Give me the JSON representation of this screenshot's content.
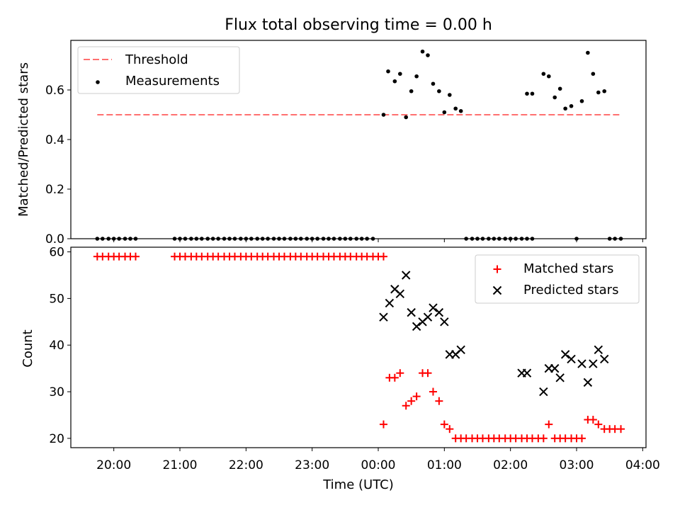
{
  "title": "Flux total observing time = 0.00 h",
  "colors": {
    "threshold": "#ff7070",
    "measurement": "#000000",
    "matched": "#ff0000",
    "predicted": "#000000"
  },
  "chart_data": [
    {
      "type": "scatter",
      "ylabel": "Matched/Predicted stars",
      "xlabel": "",
      "x_unit": "hours since 20:00 UTC",
      "xlim": [
        -0.65,
        8.05
      ],
      "ylim": [
        0,
        0.8
      ],
      "yticks": [
        0.0,
        0.2,
        0.4,
        0.6
      ],
      "ytick_labels": [
        "0.0",
        "0.2",
        "0.4",
        "0.6"
      ],
      "legend": {
        "position": "top-left",
        "entries": [
          "Threshold",
          "Measurements"
        ]
      },
      "threshold": {
        "name": "Threshold",
        "y": 0.5,
        "x_range": [
          -0.25,
          7.65
        ],
        "style": "dashed"
      },
      "series": [
        {
          "name": "Measurements",
          "points": [
            [
              -0.25,
              0
            ],
            [
              -0.17,
              0
            ],
            [
              -0.08,
              0
            ],
            [
              0.0,
              0
            ],
            [
              0.08,
              0
            ],
            [
              0.17,
              0
            ],
            [
              0.25,
              0
            ],
            [
              0.33,
              0
            ],
            [
              0.92,
              0
            ],
            [
              1.0,
              0
            ],
            [
              1.08,
              0
            ],
            [
              1.17,
              0
            ],
            [
              1.25,
              0
            ],
            [
              1.33,
              0
            ],
            [
              1.42,
              0
            ],
            [
              1.5,
              0
            ],
            [
              1.58,
              0
            ],
            [
              1.67,
              0
            ],
            [
              1.75,
              0
            ],
            [
              1.83,
              0
            ],
            [
              1.92,
              0
            ],
            [
              2.0,
              0
            ],
            [
              2.08,
              0
            ],
            [
              2.17,
              0
            ],
            [
              2.25,
              0
            ],
            [
              2.33,
              0
            ],
            [
              2.42,
              0
            ],
            [
              2.5,
              0
            ],
            [
              2.58,
              0
            ],
            [
              2.67,
              0
            ],
            [
              2.75,
              0
            ],
            [
              2.83,
              0
            ],
            [
              2.92,
              0
            ],
            [
              3.0,
              0
            ],
            [
              3.08,
              0
            ],
            [
              3.17,
              0
            ],
            [
              3.25,
              0
            ],
            [
              3.33,
              0
            ],
            [
              3.42,
              0
            ],
            [
              3.5,
              0
            ],
            [
              3.58,
              0
            ],
            [
              3.67,
              0
            ],
            [
              3.75,
              0
            ],
            [
              3.83,
              0
            ],
            [
              3.92,
              0
            ],
            [
              4.08,
              0.5
            ],
            [
              4.15,
              0.675
            ],
            [
              4.25,
              0.635
            ],
            [
              4.33,
              0.665
            ],
            [
              4.42,
              0.49
            ],
            [
              4.5,
              0.595
            ],
            [
              4.58,
              0.655
            ],
            [
              4.67,
              0.755
            ],
            [
              4.75,
              0.74
            ],
            [
              4.83,
              0.625
            ],
            [
              4.92,
              0.595
            ],
            [
              5.0,
              0.51
            ],
            [
              5.08,
              0.58
            ],
            [
              5.17,
              0.525
            ],
            [
              5.25,
              0.515
            ],
            [
              5.33,
              0
            ],
            [
              5.42,
              0
            ],
            [
              5.5,
              0
            ],
            [
              5.58,
              0
            ],
            [
              5.67,
              0
            ],
            [
              5.75,
              0
            ],
            [
              5.83,
              0
            ],
            [
              5.92,
              0
            ],
            [
              6.0,
              0
            ],
            [
              6.08,
              0
            ],
            [
              6.17,
              0
            ],
            [
              6.25,
              0.585
            ],
            [
              6.33,
              0.585
            ],
            [
              6.25,
              0
            ],
            [
              6.33,
              0
            ],
            [
              6.5,
              0.665
            ],
            [
              6.58,
              0.655
            ],
            [
              6.67,
              0.57
            ],
            [
              6.75,
              0.605
            ],
            [
              6.83,
              0.525
            ],
            [
              6.92,
              0.535
            ],
            [
              7.0,
              0
            ],
            [
              7.08,
              0.555
            ],
            [
              7.17,
              0.75
            ],
            [
              7.25,
              0.665
            ],
            [
              7.33,
              0.59
            ],
            [
              7.42,
              0.595
            ],
            [
              7.5,
              0
            ],
            [
              7.58,
              0
            ],
            [
              7.67,
              0
            ]
          ]
        }
      ]
    },
    {
      "type": "scatter",
      "xlabel": "Time (UTC)",
      "ylabel": "Count",
      "x_unit": "hours since 20:00 UTC",
      "xlim": [
        -0.65,
        8.05
      ],
      "ylim": [
        18,
        61
      ],
      "xticks": [
        0,
        1,
        2,
        3,
        4,
        5,
        6,
        7,
        8
      ],
      "xtick_labels": [
        "20:00",
        "21:00",
        "22:00",
        "23:00",
        "00:00",
        "01:00",
        "02:00",
        "03:00",
        "04:00"
      ],
      "yticks": [
        20,
        30,
        40,
        50,
        60
      ],
      "ytick_labels": [
        "20",
        "30",
        "40",
        "50",
        "60"
      ],
      "legend": {
        "position": "top-right",
        "entries": [
          "Matched stars",
          "Predicted stars"
        ]
      },
      "series": [
        {
          "name": "Matched stars",
          "marker": "+",
          "points": [
            [
              -0.25,
              59
            ],
            [
              -0.17,
              59
            ],
            [
              -0.08,
              59
            ],
            [
              0.0,
              59
            ],
            [
              0.08,
              59
            ],
            [
              0.17,
              59
            ],
            [
              0.25,
              59
            ],
            [
              0.33,
              59
            ],
            [
              0.92,
              59
            ],
            [
              1.0,
              59
            ],
            [
              1.08,
              59
            ],
            [
              1.17,
              59
            ],
            [
              1.25,
              59
            ],
            [
              1.33,
              59
            ],
            [
              1.42,
              59
            ],
            [
              1.5,
              59
            ],
            [
              1.58,
              59
            ],
            [
              1.67,
              59
            ],
            [
              1.75,
              59
            ],
            [
              1.83,
              59
            ],
            [
              1.92,
              59
            ],
            [
              2.0,
              59
            ],
            [
              2.08,
              59
            ],
            [
              2.17,
              59
            ],
            [
              2.25,
              59
            ],
            [
              2.33,
              59
            ],
            [
              2.42,
              59
            ],
            [
              2.5,
              59
            ],
            [
              2.58,
              59
            ],
            [
              2.67,
              59
            ],
            [
              2.75,
              59
            ],
            [
              2.83,
              59
            ],
            [
              2.92,
              59
            ],
            [
              3.0,
              59
            ],
            [
              3.08,
              59
            ],
            [
              3.17,
              59
            ],
            [
              3.25,
              59
            ],
            [
              3.33,
              59
            ],
            [
              3.42,
              59
            ],
            [
              3.5,
              59
            ],
            [
              3.58,
              59
            ],
            [
              3.67,
              59
            ],
            [
              3.75,
              59
            ],
            [
              3.83,
              59
            ],
            [
              3.92,
              59
            ],
            [
              4.0,
              59
            ],
            [
              4.08,
              59
            ],
            [
              4.08,
              23
            ],
            [
              4.17,
              33
            ],
            [
              4.25,
              33
            ],
            [
              4.33,
              34
            ],
            [
              4.42,
              27
            ],
            [
              4.5,
              28
            ],
            [
              4.58,
              29
            ],
            [
              4.67,
              34
            ],
            [
              4.75,
              34
            ],
            [
              4.83,
              30
            ],
            [
              4.92,
              28
            ],
            [
              5.0,
              23
            ],
            [
              5.08,
              22
            ],
            [
              5.17,
              20
            ],
            [
              5.25,
              20
            ],
            [
              5.33,
              20
            ],
            [
              5.42,
              20
            ],
            [
              5.5,
              20
            ],
            [
              5.58,
              20
            ],
            [
              5.67,
              20
            ],
            [
              5.75,
              20
            ],
            [
              5.83,
              20
            ],
            [
              5.92,
              20
            ],
            [
              6.0,
              20
            ],
            [
              6.08,
              20
            ],
            [
              6.17,
              20
            ],
            [
              6.25,
              20
            ],
            [
              6.33,
              20
            ],
            [
              6.42,
              20
            ],
            [
              6.5,
              20
            ],
            [
              6.58,
              23
            ],
            [
              6.67,
              20
            ],
            [
              6.75,
              20
            ],
            [
              6.83,
              20
            ],
            [
              6.92,
              20
            ],
            [
              7.0,
              20
            ],
            [
              7.08,
              20
            ],
            [
              7.17,
              24
            ],
            [
              7.25,
              24
            ],
            [
              7.33,
              23
            ],
            [
              7.42,
              22
            ],
            [
              7.5,
              22
            ],
            [
              7.58,
              22
            ],
            [
              7.67,
              22
            ]
          ]
        },
        {
          "name": "Predicted stars",
          "marker": "x",
          "points": [
            [
              4.08,
              46
            ],
            [
              4.17,
              49
            ],
            [
              4.25,
              52
            ],
            [
              4.33,
              51
            ],
            [
              4.42,
              55
            ],
            [
              4.5,
              47
            ],
            [
              4.58,
              44
            ],
            [
              4.67,
              45
            ],
            [
              4.75,
              46
            ],
            [
              4.83,
              48
            ],
            [
              4.92,
              47
            ],
            [
              5.0,
              45
            ],
            [
              5.08,
              38
            ],
            [
              5.17,
              38
            ],
            [
              5.25,
              39
            ],
            [
              6.17,
              34
            ],
            [
              6.25,
              34
            ],
            [
              6.5,
              30
            ],
            [
              6.58,
              35
            ],
            [
              6.67,
              35
            ],
            [
              6.75,
              33
            ],
            [
              6.83,
              38
            ],
            [
              6.92,
              37
            ],
            [
              7.08,
              36
            ],
            [
              7.17,
              32
            ],
            [
              7.25,
              36
            ],
            [
              7.33,
              39
            ],
            [
              7.42,
              37
            ]
          ]
        }
      ]
    }
  ]
}
